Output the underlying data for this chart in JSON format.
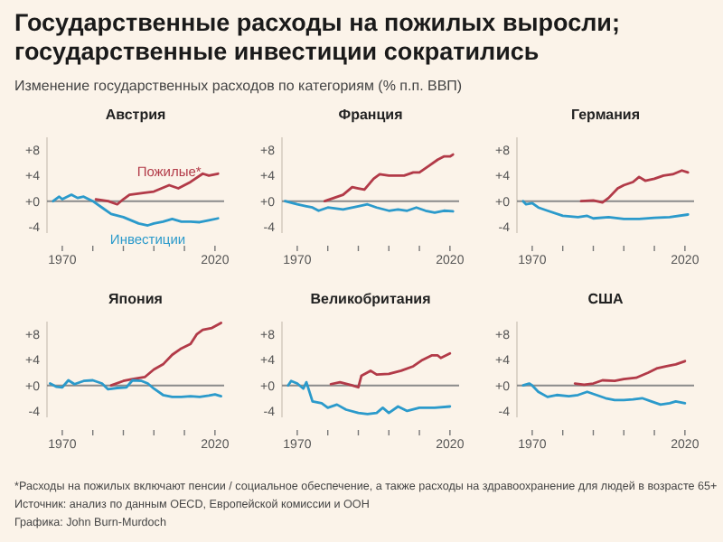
{
  "chart_data": [
    {
      "type": "other",
      "title": "Государственные расходы на пожилых выросли;\nгосударственные инвестиции сократились",
      "subtitle": "Изменение государственных расходов по категориям (% п.п. ВВП)",
      "annotations": [
        "*Расходы на пожилых включают пенсии / социальное обеспечение, а также расходы на здравоохранение для людей в возрасте 65+",
        "Источник: анализ по данным OECD, Европейской комиссии и ООН",
        "Графика: John Burn-Murdoch"
      ]
    },
    {
      "type": "line",
      "title": "Австрия",
      "xlim": [
        1965,
        2023
      ],
      "ylim": [
        -5,
        10
      ],
      "xticks": [
        {
          "value": 1970,
          "label": "1970"
        },
        {
          "value": 1980,
          "label": null
        },
        {
          "value": 1990,
          "label": null
        },
        {
          "value": 2000,
          "label": null
        },
        {
          "value": 2010,
          "label": null
        },
        {
          "value": 2020,
          "label": "2020"
        }
      ],
      "yticks": [
        {
          "value": 8,
          "label": "+8"
        },
        {
          "value": 4,
          "label": "+4"
        },
        {
          "value": 0,
          "label": "+0"
        },
        {
          "value": -4,
          "label": "-4"
        }
      ],
      "ref_lines": [
        {
          "axis": "y",
          "value": 0,
          "color": "#8a8a8a"
        }
      ],
      "series": [
        {
          "name": "Пожилые*",
          "color": "#b23a48",
          "x": [
            1981,
            1985,
            1988,
            1990,
            1992,
            1997,
            2000,
            2005,
            2008,
            2012,
            2016,
            2018,
            2021
          ],
          "values": [
            0.3,
            0,
            -0.5,
            0.3,
            1,
            1.3,
            1.5,
            2.5,
            2,
            3,
            4.3,
            4,
            4.3
          ]
        },
        {
          "name": "Инвестиции",
          "color": "#2b9acb",
          "x": [
            1967,
            1969,
            1970,
            1973,
            1975,
            1977,
            1980,
            1983,
            1986,
            1990,
            1995,
            1998,
            2000,
            2003,
            2006,
            2009,
            2012,
            2015,
            2018,
            2021
          ],
          "values": [
            0,
            0.7,
            0.3,
            1,
            0.5,
            0.7,
            0,
            -1,
            -2,
            -2.5,
            -3.5,
            -3.8,
            -3.5,
            -3.2,
            -2.8,
            -3.2,
            -3.2,
            -3.3,
            -3,
            -2.7
          ]
        }
      ]
    },
    {
      "type": "line",
      "title": "Франция",
      "xlim": [
        1965,
        2023
      ],
      "ylim": [
        -5,
        10
      ],
      "xticks": [
        {
          "value": 1970,
          "label": "1970"
        },
        {
          "value": 1980,
          "label": null
        },
        {
          "value": 1990,
          "label": null
        },
        {
          "value": 2000,
          "label": null
        },
        {
          "value": 2010,
          "label": null
        },
        {
          "value": 2020,
          "label": "2020"
        }
      ],
      "yticks": [
        {
          "value": 8,
          "label": "+8"
        },
        {
          "value": 4,
          "label": "+4"
        },
        {
          "value": 0,
          "label": "+0"
        },
        {
          "value": -4,
          "label": "-4"
        }
      ],
      "ref_lines": [
        {
          "axis": "y",
          "value": 0,
          "color": "#8a8a8a"
        }
      ],
      "series": [
        {
          "color": "#b23a48",
          "x": [
            1979,
            1982,
            1985,
            1988,
            1990,
            1992,
            1995,
            1997,
            2000,
            2005,
            2008,
            2010,
            2013,
            2016,
            2018,
            2020,
            2021
          ],
          "values": [
            0,
            0.5,
            1,
            2.2,
            2,
            1.8,
            3.5,
            4.2,
            4,
            4,
            4.5,
            4.5,
            5.5,
            6.5,
            7,
            7,
            7.3
          ]
        },
        {
          "color": "#2b9acb",
          "x": [
            1966,
            1970,
            1973,
            1975,
            1977,
            1980,
            1985,
            1990,
            1993,
            1996,
            2000,
            2003,
            2006,
            2009,
            2012,
            2015,
            2018,
            2021
          ],
          "values": [
            0,
            -0.5,
            -0.8,
            -1,
            -1.5,
            -1,
            -1.3,
            -0.8,
            -0.5,
            -1,
            -1.5,
            -1.3,
            -1.5,
            -1,
            -1.5,
            -1.8,
            -1.5,
            -1.6
          ]
        }
      ]
    },
    {
      "type": "line",
      "title": "Германия",
      "xlim": [
        1965,
        2023
      ],
      "ylim": [
        -5,
        10
      ],
      "xticks": [
        {
          "value": 1970,
          "label": "1970"
        },
        {
          "value": 1980,
          "label": null
        },
        {
          "value": 1990,
          "label": null
        },
        {
          "value": 2000,
          "label": null
        },
        {
          "value": 2010,
          "label": null
        },
        {
          "value": 2020,
          "label": "2020"
        }
      ],
      "yticks": [
        {
          "value": 8,
          "label": "+8"
        },
        {
          "value": 4,
          "label": "+4"
        },
        {
          "value": 0,
          "label": "+0"
        },
        {
          "value": -4,
          "label": "-4"
        }
      ],
      "ref_lines": [
        {
          "axis": "y",
          "value": 0,
          "color": "#8a8a8a"
        }
      ],
      "series": [
        {
          "color": "#b23a48",
          "x": [
            1986,
            1990,
            1993,
            1995,
            1998,
            2000,
            2003,
            2005,
            2007,
            2010,
            2013,
            2016,
            2019,
            2021
          ],
          "values": [
            0,
            0.1,
            -0.2,
            0.5,
            2,
            2.5,
            3,
            3.8,
            3.2,
            3.5,
            4,
            4.2,
            4.8,
            4.5
          ]
        },
        {
          "color": "#2b9acb",
          "x": [
            1967,
            1968,
            1970,
            1972,
            1975,
            1980,
            1985,
            1988,
            1990,
            1995,
            2000,
            2005,
            2010,
            2015,
            2021
          ],
          "values": [
            0,
            -0.5,
            -0.3,
            -1,
            -1.5,
            -2.3,
            -2.5,
            -2.3,
            -2.7,
            -2.5,
            -2.8,
            -2.8,
            -2.6,
            -2.5,
            -2.1
          ]
        }
      ]
    },
    {
      "type": "line",
      "title": "Япония",
      "xlim": [
        1965,
        2023
      ],
      "ylim": [
        -5,
        10
      ],
      "xticks": [
        {
          "value": 1970,
          "label": "1970"
        },
        {
          "value": 1980,
          "label": null
        },
        {
          "value": 1990,
          "label": null
        },
        {
          "value": 2000,
          "label": null
        },
        {
          "value": 2010,
          "label": null
        },
        {
          "value": 2020,
          "label": "2020"
        }
      ],
      "yticks": [
        {
          "value": 8,
          "label": "+8"
        },
        {
          "value": 4,
          "label": "+4"
        },
        {
          "value": 0,
          "label": "+0"
        },
        {
          "value": -4,
          "label": "-4"
        }
      ],
      "ref_lines": [
        {
          "axis": "y",
          "value": 0,
          "color": "#8a8a8a"
        }
      ],
      "series": [
        {
          "color": "#b23a48",
          "x": [
            1986,
            1990,
            1993,
            1997,
            2000,
            2003,
            2006,
            2009,
            2012,
            2014,
            2016,
            2019,
            2022
          ],
          "values": [
            0,
            0.7,
            1,
            1.3,
            2.5,
            3.3,
            4.8,
            5.8,
            6.5,
            8,
            8.7,
            9,
            9.8
          ]
        },
        {
          "color": "#2b9acb",
          "x": [
            1966,
            1968,
            1970,
            1972,
            1974,
            1977,
            1980,
            1983,
            1985,
            1988,
            1991,
            1993,
            1996,
            1998,
            2000,
            2003,
            2006,
            2009,
            2012,
            2015,
            2018,
            2020,
            2022
          ],
          "values": [
            0.3,
            -0.2,
            -0.3,
            0.8,
            0.2,
            0.7,
            0.8,
            0.3,
            -0.6,
            -0.4,
            -0.3,
            0.8,
            0.7,
            0.3,
            -0.5,
            -1.5,
            -1.8,
            -1.8,
            -1.7,
            -1.8,
            -1.6,
            -1.4,
            -1.7
          ]
        }
      ]
    },
    {
      "type": "line",
      "title": "Великобритания",
      "xlim": [
        1965,
        2023
      ],
      "ylim": [
        -5,
        10
      ],
      "xticks": [
        {
          "value": 1970,
          "label": "1970"
        },
        {
          "value": 1980,
          "label": null
        },
        {
          "value": 1990,
          "label": null
        },
        {
          "value": 2000,
          "label": null
        },
        {
          "value": 2010,
          "label": null
        },
        {
          "value": 2020,
          "label": "2020"
        }
      ],
      "yticks": [
        {
          "value": 8,
          "label": "+8"
        },
        {
          "value": 4,
          "label": "+4"
        },
        {
          "value": 0,
          "label": "+0"
        },
        {
          "value": -4,
          "label": "-4"
        }
      ],
      "ref_lines": [
        {
          "axis": "y",
          "value": 0,
          "color": "#8a8a8a"
        }
      ],
      "series": [
        {
          "color": "#b23a48",
          "x": [
            1981,
            1984,
            1988,
            1990,
            1991,
            1994,
            1996,
            2000,
            2004,
            2008,
            2011,
            2014,
            2016,
            2017,
            2020
          ],
          "values": [
            0.2,
            0.5,
            0,
            -0.3,
            1.5,
            2.3,
            1.7,
            1.8,
            2.3,
            3,
            4,
            4.7,
            4.7,
            4.3,
            5
          ]
        },
        {
          "color": "#2b9acb",
          "x": [
            1967,
            1968,
            1970,
            1972,
            1973,
            1975,
            1978,
            1980,
            1983,
            1986,
            1990,
            1993,
            1996,
            1998,
            2000,
            2003,
            2006,
            2010,
            2015,
            2020
          ],
          "values": [
            0,
            0.7,
            0.3,
            -0.5,
            0.5,
            -2.5,
            -2.8,
            -3.5,
            -3,
            -3.8,
            -4.3,
            -4.5,
            -4.3,
            -3.5,
            -4.3,
            -3.3,
            -4,
            -3.5,
            -3.5,
            -3.3
          ]
        }
      ]
    },
    {
      "type": "line",
      "title": "США",
      "xlim": [
        1965,
        2023
      ],
      "ylim": [
        -5,
        10
      ],
      "xticks": [
        {
          "value": 1970,
          "label": "1970"
        },
        {
          "value": 1980,
          "label": null
        },
        {
          "value": 1990,
          "label": null
        },
        {
          "value": 2000,
          "label": null
        },
        {
          "value": 2010,
          "label": null
        },
        {
          "value": 2020,
          "label": "2020"
        }
      ],
      "yticks": [
        {
          "value": 8,
          "label": "+8"
        },
        {
          "value": 4,
          "label": "+4"
        },
        {
          "value": 0,
          "label": "+0"
        },
        {
          "value": -4,
          "label": "-4"
        }
      ],
      "ref_lines": [
        {
          "axis": "y",
          "value": 0,
          "color": "#8a8a8a"
        }
      ],
      "series": [
        {
          "color": "#b23a48",
          "x": [
            1984,
            1987,
            1990,
            1993,
            1997,
            2000,
            2004,
            2008,
            2011,
            2014,
            2017,
            2020
          ],
          "values": [
            0.3,
            0.1,
            0.3,
            0.8,
            0.7,
            1,
            1.2,
            2,
            2.7,
            3,
            3.3,
            3.8
          ]
        },
        {
          "color": "#2b9acb",
          "x": [
            1967,
            1969,
            1970,
            1972,
            1975,
            1978,
            1982,
            1985,
            1988,
            1991,
            1994,
            1997,
            2000,
            2003,
            2006,
            2009,
            2012,
            2015,
            2017,
            2020
          ],
          "values": [
            0,
            0.3,
            0,
            -1,
            -1.8,
            -1.5,
            -1.7,
            -1.5,
            -1,
            -1.5,
            -2,
            -2.3,
            -2.3,
            -2.2,
            -2,
            -2.5,
            -3,
            -2.8,
            -2.5,
            -2.8
          ]
        }
      ]
    }
  ]
}
